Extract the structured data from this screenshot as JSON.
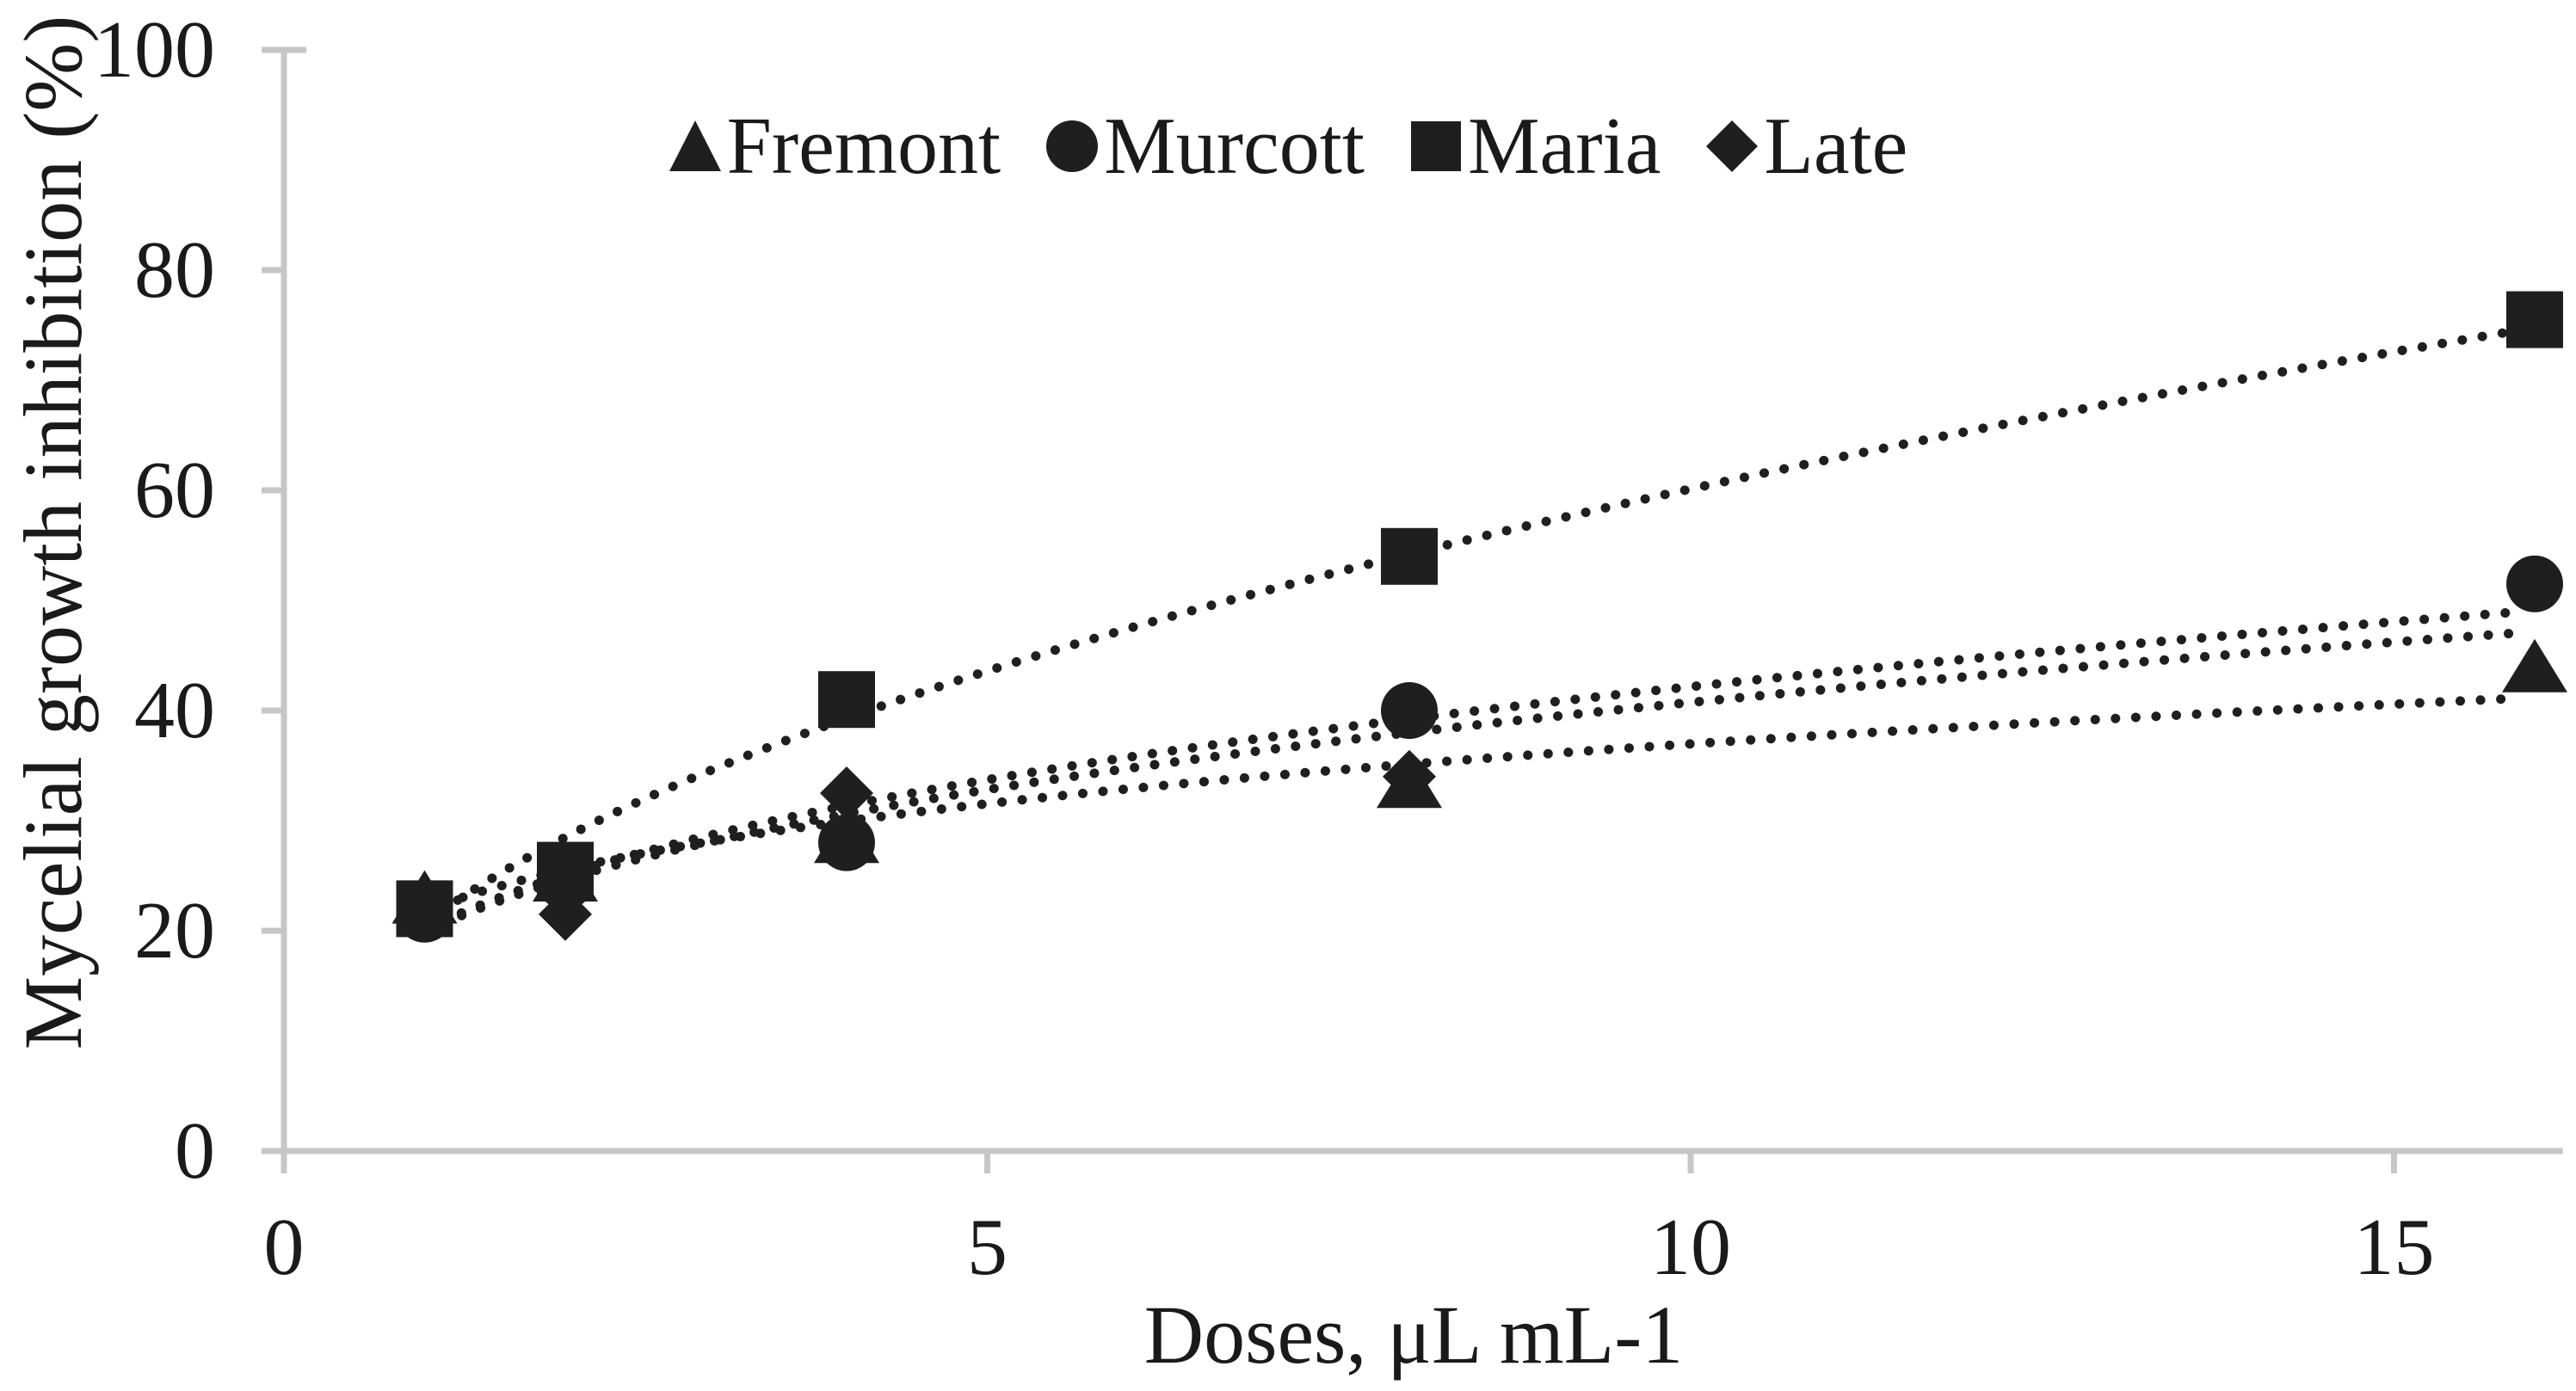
{
  "figure": {
    "background": "#ffffff",
    "text_color": "#1a1a1a",
    "axis_color": "#c6c6c6",
    "marker_color": "#1f1f1f"
  },
  "chart_data": {
    "type": "scatter",
    "title": "",
    "xlabel": "Doses, μL mL-1",
    "ylabel": "Mycelial growth inhibition (%)",
    "xlim": [
      0,
      16.2
    ],
    "ylim": [
      0,
      100
    ],
    "grid": false,
    "legend_position": "top-center",
    "trendline": "dotted power fit per series",
    "xtick_labels": [
      "0",
      "5",
      "10",
      "15"
    ],
    "xtick_values": [
      0,
      5,
      10,
      15
    ],
    "ytick_labels": [
      "100",
      "80",
      "60",
      "40",
      "20",
      "0"
    ],
    "ytick_values": [
      100,
      80,
      60,
      40,
      20,
      0
    ],
    "x": [
      1,
      2,
      4,
      8,
      16
    ],
    "series": [
      {
        "name": "Fremont",
        "marker": "triangle",
        "values": [
          23,
          25,
          28.5,
          33.5,
          44
        ]
      },
      {
        "name": "Murcott",
        "marker": "circle",
        "values": [
          21.5,
          24.5,
          28,
          40,
          51.5
        ]
      },
      {
        "name": "Maria",
        "marker": "square",
        "values": [
          22,
          25.5,
          41,
          54,
          75.5
        ]
      },
      {
        "name": "Late",
        "marker": "diamond",
        "values": [
          22,
          21.5,
          32.5,
          34,
          51.5
        ]
      }
    ]
  }
}
